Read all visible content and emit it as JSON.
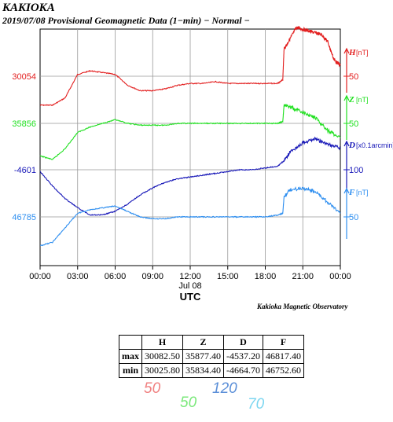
{
  "header": {
    "station": "KAKIOKA",
    "subtitle": "2019/07/08  Provisional Geomagnetic Data (1−min)  − Normal −"
  },
  "credit": "Kakioka Magnetic Observatory",
  "colors": {
    "H": "#e32020",
    "Z": "#20e020",
    "D": "#1818b8",
    "F": "#2f8ff0"
  },
  "chart_data": {
    "type": "line",
    "title": "KAKIOKA 2019/07/08 Provisional Geomagnetic Data (1-min) - Normal -",
    "xlabel": "UTC",
    "x_date_label": "Jul 08",
    "x_ticks": [
      "00:00",
      "03:00",
      "06:00",
      "09:00",
      "12:00",
      "15:00",
      "18:00",
      "21:00",
      "00:00"
    ],
    "xlim_hours": [
      0,
      24
    ],
    "grid": true,
    "series": [
      {
        "name": "H",
        "unit": "[nT]",
        "color": "#e32020",
        "left_label": "30054",
        "right_label": "50",
        "x": [
          0,
          1,
          2,
          3,
          4,
          5,
          6,
          7,
          8,
          9,
          10,
          11,
          12,
          13,
          14,
          15,
          16,
          17,
          18,
          19,
          19.4,
          19.5,
          20,
          20.5,
          21,
          21.5,
          22,
          22.5,
          23,
          23.5,
          24
        ],
        "y": [
          30038,
          30038,
          30042,
          30055,
          30057,
          30056,
          30055,
          30049,
          30046,
          30046,
          30047,
          30049,
          30050,
          30050,
          30051,
          30050,
          30050,
          30050,
          30050,
          30050,
          30052,
          30069,
          30075,
          30081,
          30080,
          30079,
          30078,
          30077,
          30073,
          30063,
          30060
        ]
      },
      {
        "name": "Z",
        "unit": "[nT]",
        "color": "#20e020",
        "left_label": "35856",
        "right_label": "50",
        "x": [
          0,
          1,
          2,
          3,
          4,
          5,
          6,
          7,
          8,
          9,
          10,
          11,
          12,
          13,
          14,
          15,
          16,
          17,
          18,
          19,
          19.4,
          19.5,
          20,
          21,
          22,
          23,
          24
        ],
        "y": [
          35838,
          35836,
          35842,
          35851,
          35854,
          35856,
          35858,
          35856,
          35855,
          35855,
          35855,
          35856,
          35856,
          35856,
          35856,
          35856,
          35856,
          35856,
          35856,
          35856,
          35857,
          35866,
          35865,
          35862,
          35859,
          35852,
          35848
        ]
      },
      {
        "name": "D",
        "unit": "[x0.1arcmin]",
        "color": "#1818b8",
        "left_label": "-4601",
        "right_label": "100",
        "x": [
          0,
          1,
          2,
          3,
          4,
          5,
          6,
          7,
          8,
          9,
          10,
          11,
          12,
          13,
          14,
          15,
          16,
          17,
          18,
          19,
          19.5,
          20,
          21,
          22,
          23,
          24
        ],
        "y": [
          -4602,
          -4610,
          -4617,
          -4622,
          -4626,
          -4626,
          -4624,
          -4620,
          -4615,
          -4611,
          -4608,
          -4606,
          -4605,
          -4604,
          -4603,
          -4602,
          -4601,
          -4601,
          -4600,
          -4599,
          -4596,
          -4591,
          -4586,
          -4584,
          -4587,
          -4589
        ]
      },
      {
        "name": "F",
        "unit": "[nT]",
        "color": "#2f8ff0",
        "left_label": "46785",
        "right_label": "50",
        "x": [
          0,
          1,
          2,
          3,
          4,
          5,
          6,
          7,
          8,
          9,
          10,
          11,
          12,
          13,
          14,
          15,
          16,
          17,
          18,
          19,
          19.4,
          19.5,
          20,
          21,
          22,
          23,
          24
        ],
        "y": [
          46769,
          46771,
          46779,
          46787,
          46789,
          46790,
          46791,
          46788,
          46785,
          46784,
          46784,
          46785,
          46785,
          46785,
          46785,
          46785,
          46785,
          46785,
          46785,
          46786,
          46787,
          46796,
          46800,
          46801,
          46799,
          46793,
          46787
        ]
      }
    ]
  },
  "stats": {
    "headers": [
      "",
      "H",
      "Z",
      "D",
      "F"
    ],
    "rows": [
      [
        "max",
        "30082.50",
        "35877.40",
        "-4537.20",
        "46817.40"
      ],
      [
        "min",
        "30025.80",
        "35834.40",
        "-4664.70",
        "46752.60"
      ]
    ]
  },
  "scale_notes": [
    {
      "text": "50",
      "color": "#f08080"
    },
    {
      "text": "50",
      "color": "#7ae87a"
    },
    {
      "text": "120",
      "color": "#5b8fd8"
    },
    {
      "text": "70",
      "color": "#7cd6f0"
    }
  ]
}
